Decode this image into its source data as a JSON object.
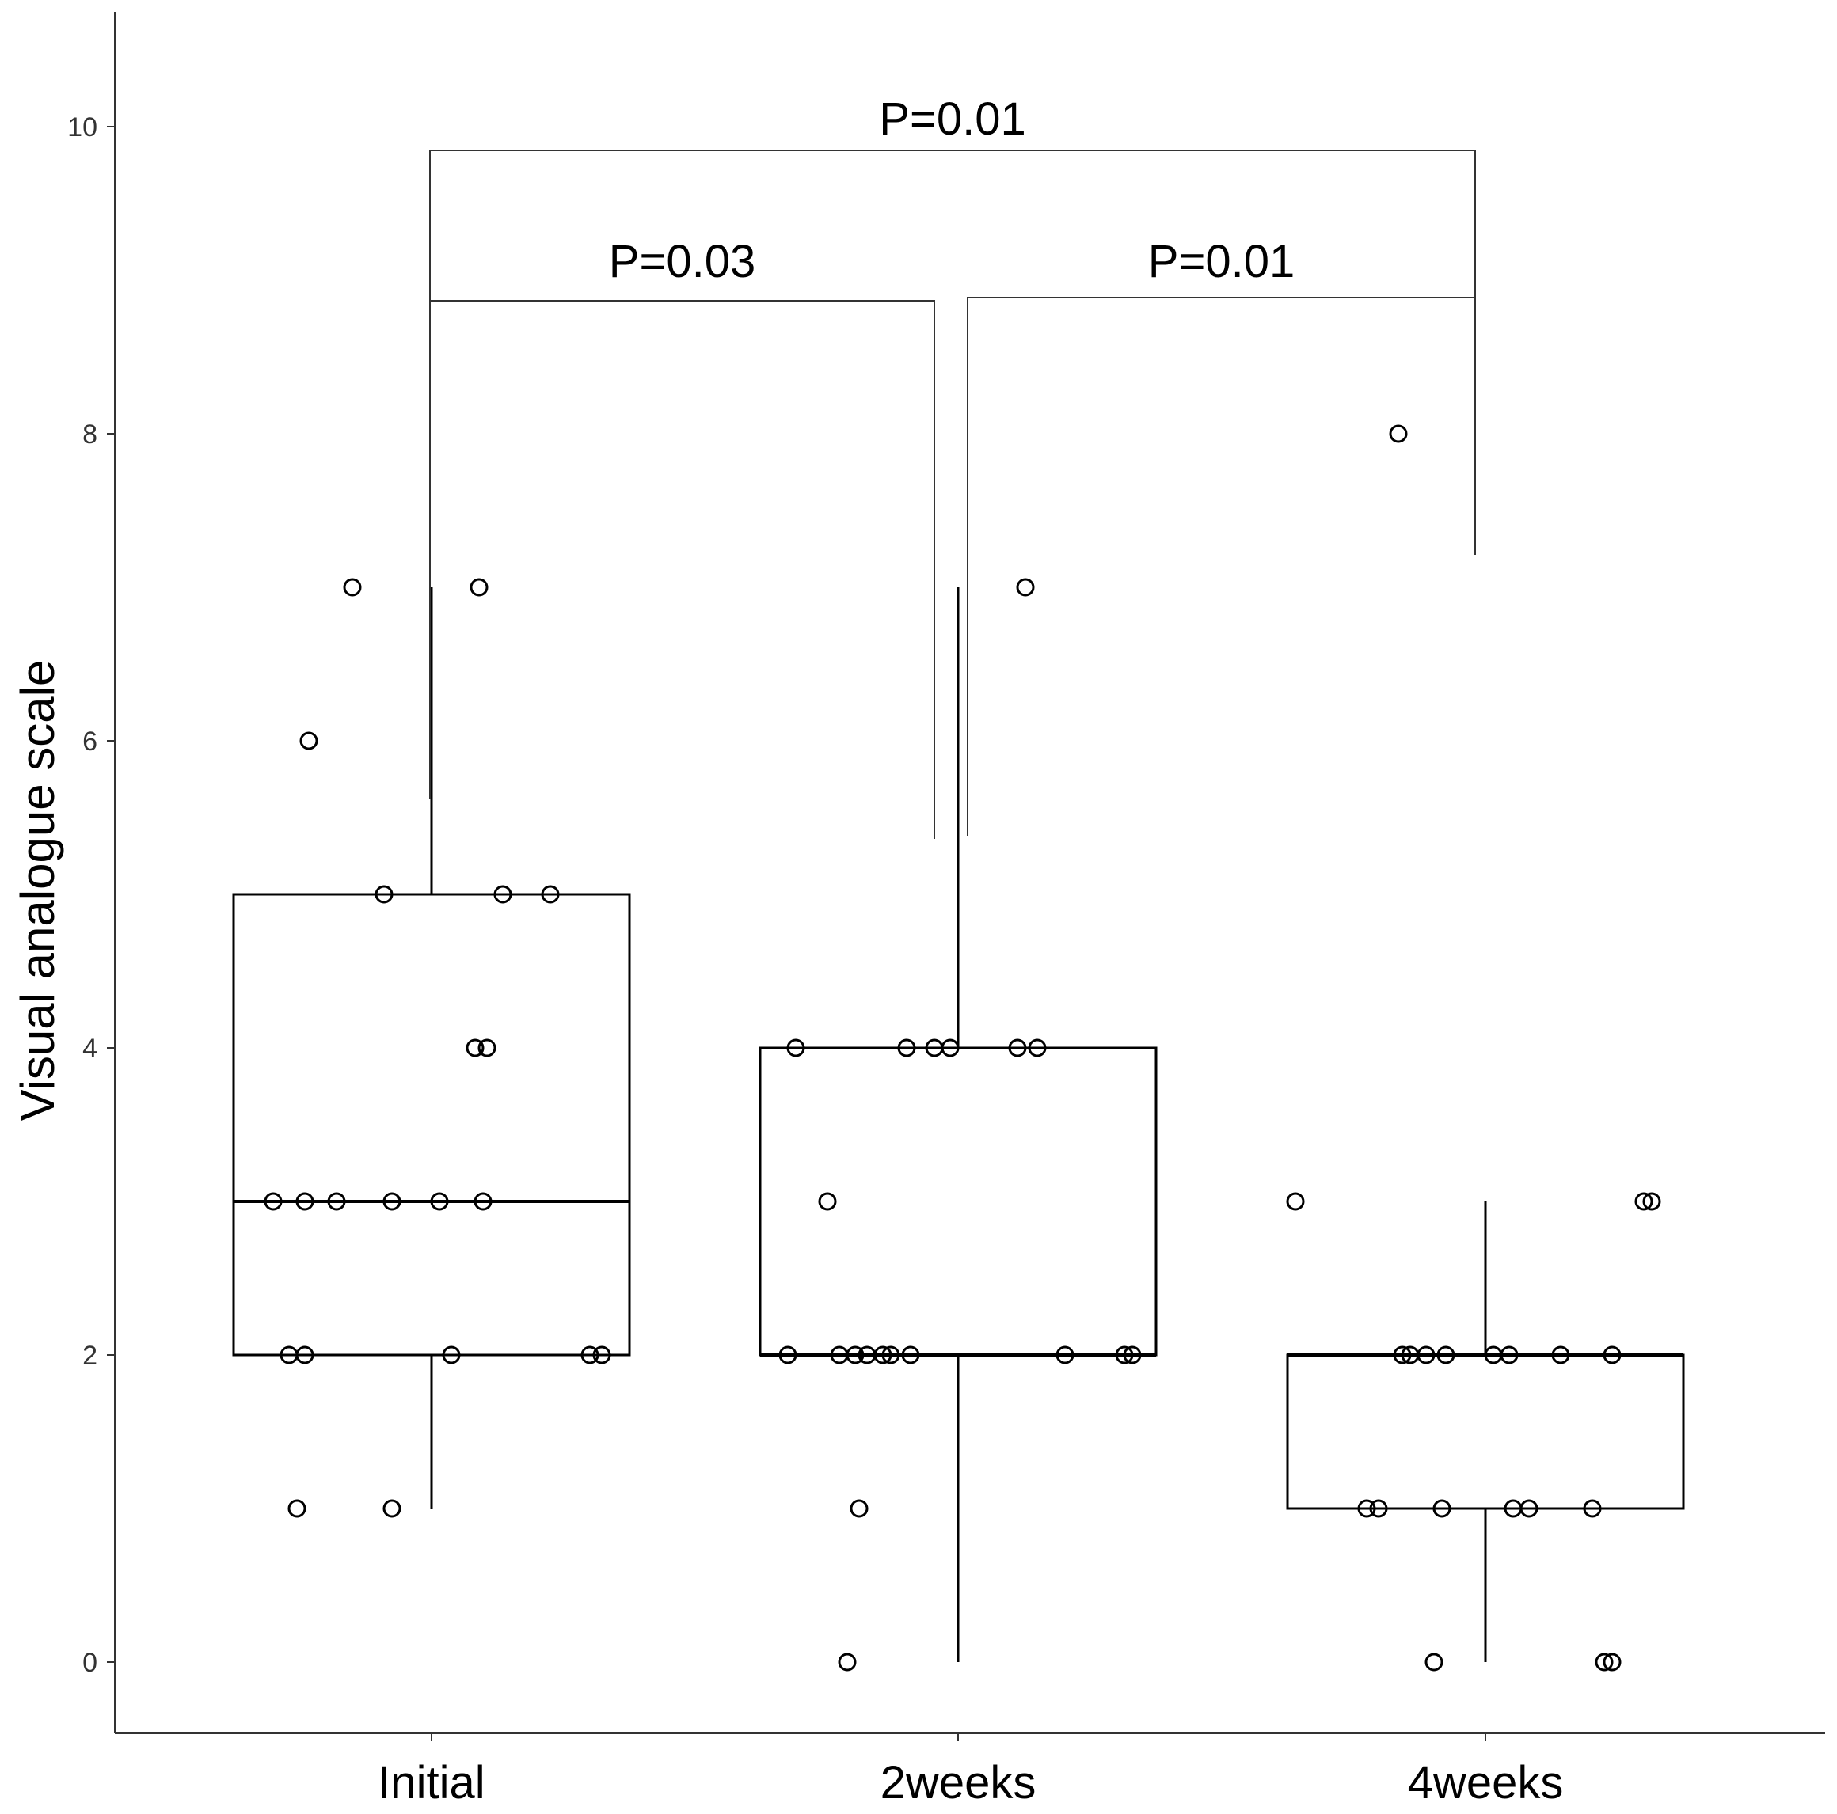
{
  "chart_data": {
    "type": "box",
    "title": "",
    "ylabel": "Visual analogue scale",
    "xlabel": "",
    "ylim": [
      -0.5,
      10.8
    ],
    "yticks": [
      0,
      2,
      4,
      6,
      8,
      10
    ],
    "ytick_labels": [
      "0",
      "2",
      "4",
      "6",
      "8",
      "10"
    ],
    "categories": [
      "Initial",
      "2weeks",
      "4weeks"
    ],
    "boxes": [
      {
        "name": "Initial",
        "whisker_low": 1,
        "q1": 2,
        "median": 3,
        "q3": 5,
        "whisker_high": 7
      },
      {
        "name": "2weeks",
        "whisker_low": 0,
        "q1": 2,
        "median": 2,
        "q3": 4,
        "whisker_high": 7
      },
      {
        "name": "4weeks",
        "whisker_low": 0,
        "q1": 1,
        "median": 2,
        "q3": 2,
        "whisker_high": 3
      }
    ],
    "points": [
      {
        "group": "Initial",
        "values": [
          7,
          7,
          6,
          5,
          5,
          5,
          4,
          4,
          3,
          3,
          3,
          3,
          3,
          3,
          2,
          2,
          2,
          2,
          2,
          1,
          1
        ]
      },
      {
        "group": "2weeks",
        "values": [
          7,
          4,
          4,
          4,
          4,
          4,
          4,
          3,
          2,
          2,
          2,
          2,
          2,
          2,
          2,
          2,
          2,
          2,
          1,
          0
        ]
      },
      {
        "group": "4weeks",
        "values": [
          8,
          3,
          3,
          3,
          2,
          2,
          2,
          2,
          2,
          2,
          2,
          2,
          1,
          1,
          1,
          1,
          1,
          1,
          0,
          0,
          0
        ]
      }
    ],
    "comparisons": [
      {
        "from": "Initial",
        "to": "4weeks",
        "label": "P=0.01"
      },
      {
        "from": "Initial",
        "to": "2weeks",
        "label": "P=0.03"
      },
      {
        "from": "2weeks",
        "to": "4weeks",
        "label": "P=0.01"
      }
    ]
  }
}
